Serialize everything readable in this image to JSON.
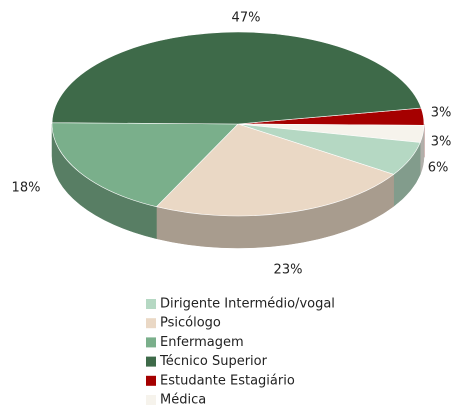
{
  "chart_data": {
    "type": "pie",
    "categories": [
      "Dirigente Intermédio/vogal",
      "Psicólogo",
      "Enfermagem",
      "Técnico Superior",
      "Estudante Estagiário",
      "Médica"
    ],
    "values": [
      6,
      23,
      18,
      47,
      3,
      3
    ],
    "value_labels": [
      "6%",
      "23%",
      "18%",
      "47%",
      "3%",
      "3%"
    ],
    "colors": [
      "#b5d8c3",
      "#ead8c5",
      "#7aaf8b",
      "#3e6a49",
      "#a50000",
      "#f6f3ec"
    ],
    "legend": "bottom"
  }
}
